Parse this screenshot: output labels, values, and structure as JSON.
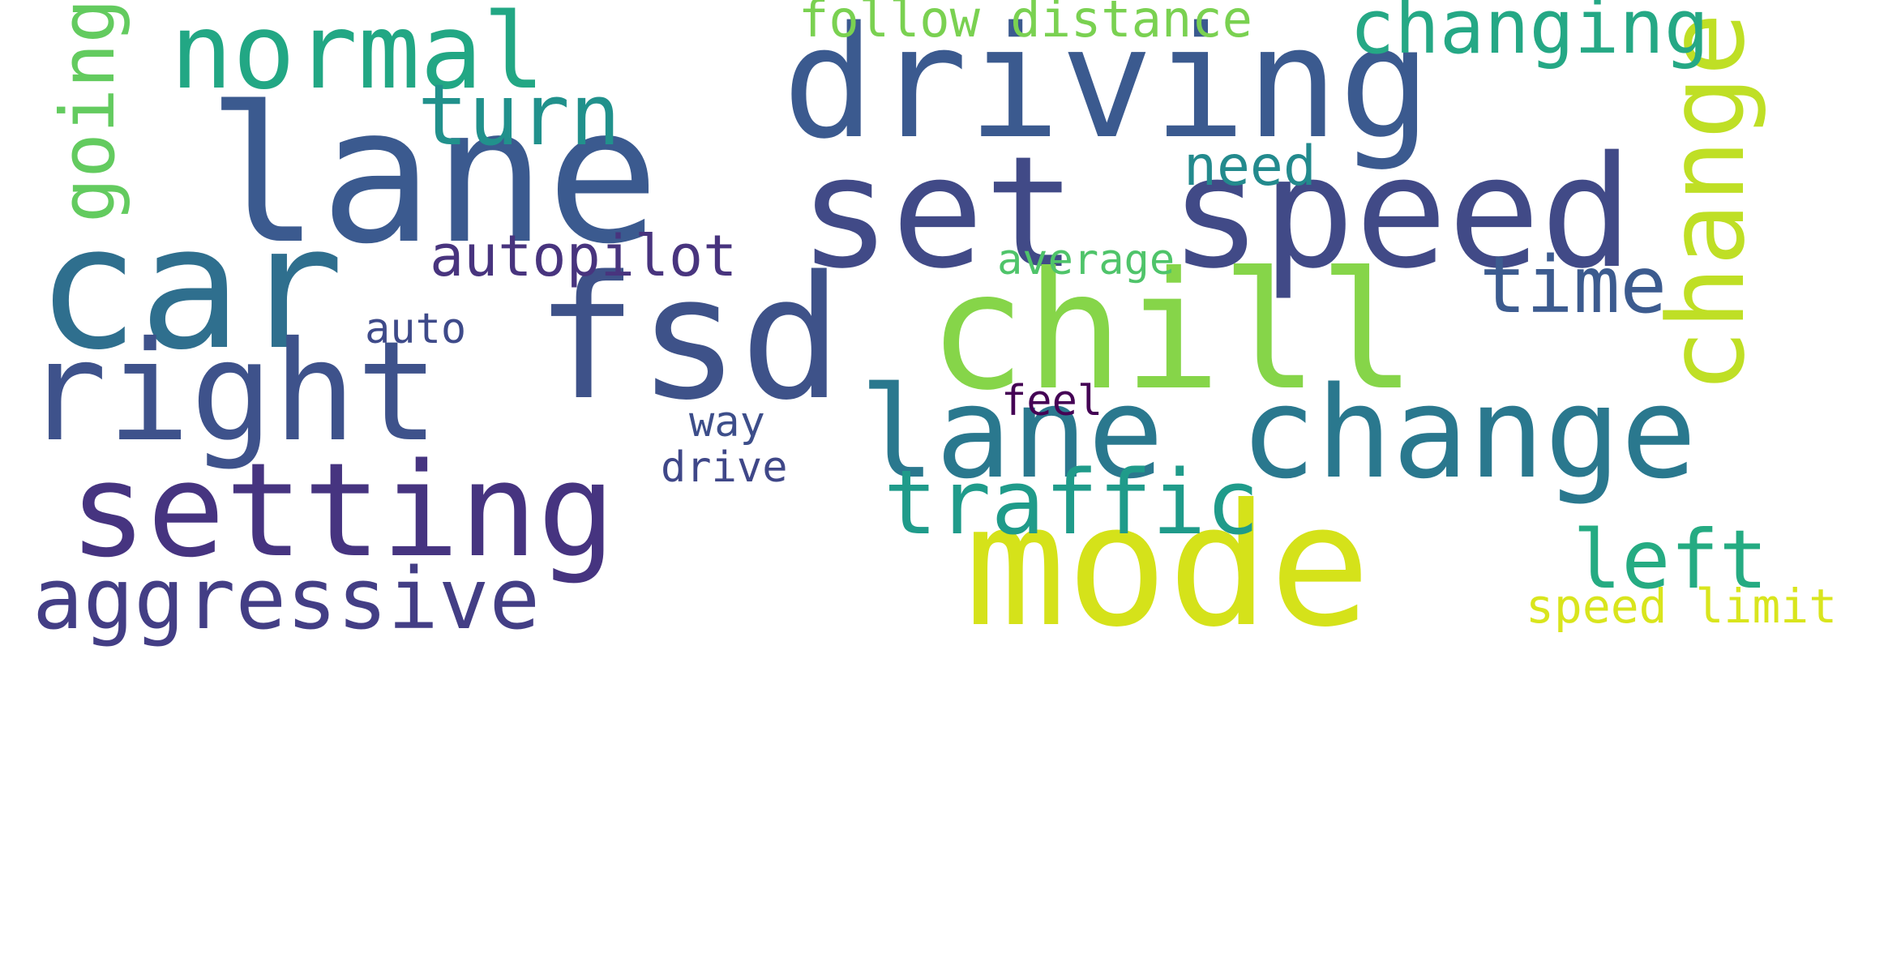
{
  "words": [
    {
      "text": "lane",
      "color": "#3b5a8f"
    },
    {
      "text": "set speed",
      "color": "#414a87"
    },
    {
      "text": "car",
      "color": "#2f6f8e"
    },
    {
      "text": "driving",
      "color": "#3b5a8f"
    },
    {
      "text": "fsd",
      "color": "#3e5289"
    },
    {
      "text": "chill",
      "color": "#86d549"
    },
    {
      "text": "mode",
      "color": "#d5e21a"
    },
    {
      "text": "lane change",
      "color": "#2a788e"
    },
    {
      "text": "right",
      "color": "#3e528b"
    },
    {
      "text": "setting",
      "color": "#463480"
    },
    {
      "text": "normal",
      "color": "#22a784"
    },
    {
      "text": "change",
      "color": "#bfdf25"
    },
    {
      "text": "traffic",
      "color": "#1f9b8a"
    },
    {
      "text": "aggressive",
      "color": "#433e85"
    },
    {
      "text": "turn",
      "color": "#21918c"
    },
    {
      "text": "changing",
      "color": "#25a885"
    },
    {
      "text": "going",
      "color": "#63cb5f"
    },
    {
      "text": "time",
      "color": "#3c5b8f"
    },
    {
      "text": "left",
      "color": "#25ab82"
    },
    {
      "text": "autopilot",
      "color": "#48347e"
    },
    {
      "text": "follow distance",
      "color": "#7ad151"
    },
    {
      "text": "need",
      "color": "#238a8d"
    },
    {
      "text": "speed limit",
      "color": "#d9e51d"
    },
    {
      "text": "average",
      "color": "#4fc46a"
    },
    {
      "text": "auto",
      "color": "#3e4a89"
    },
    {
      "text": "feel",
      "color": "#440154"
    },
    {
      "text": "way",
      "color": "#3d4e8a"
    },
    {
      "text": "drive",
      "color": "#3f4788"
    }
  ]
}
